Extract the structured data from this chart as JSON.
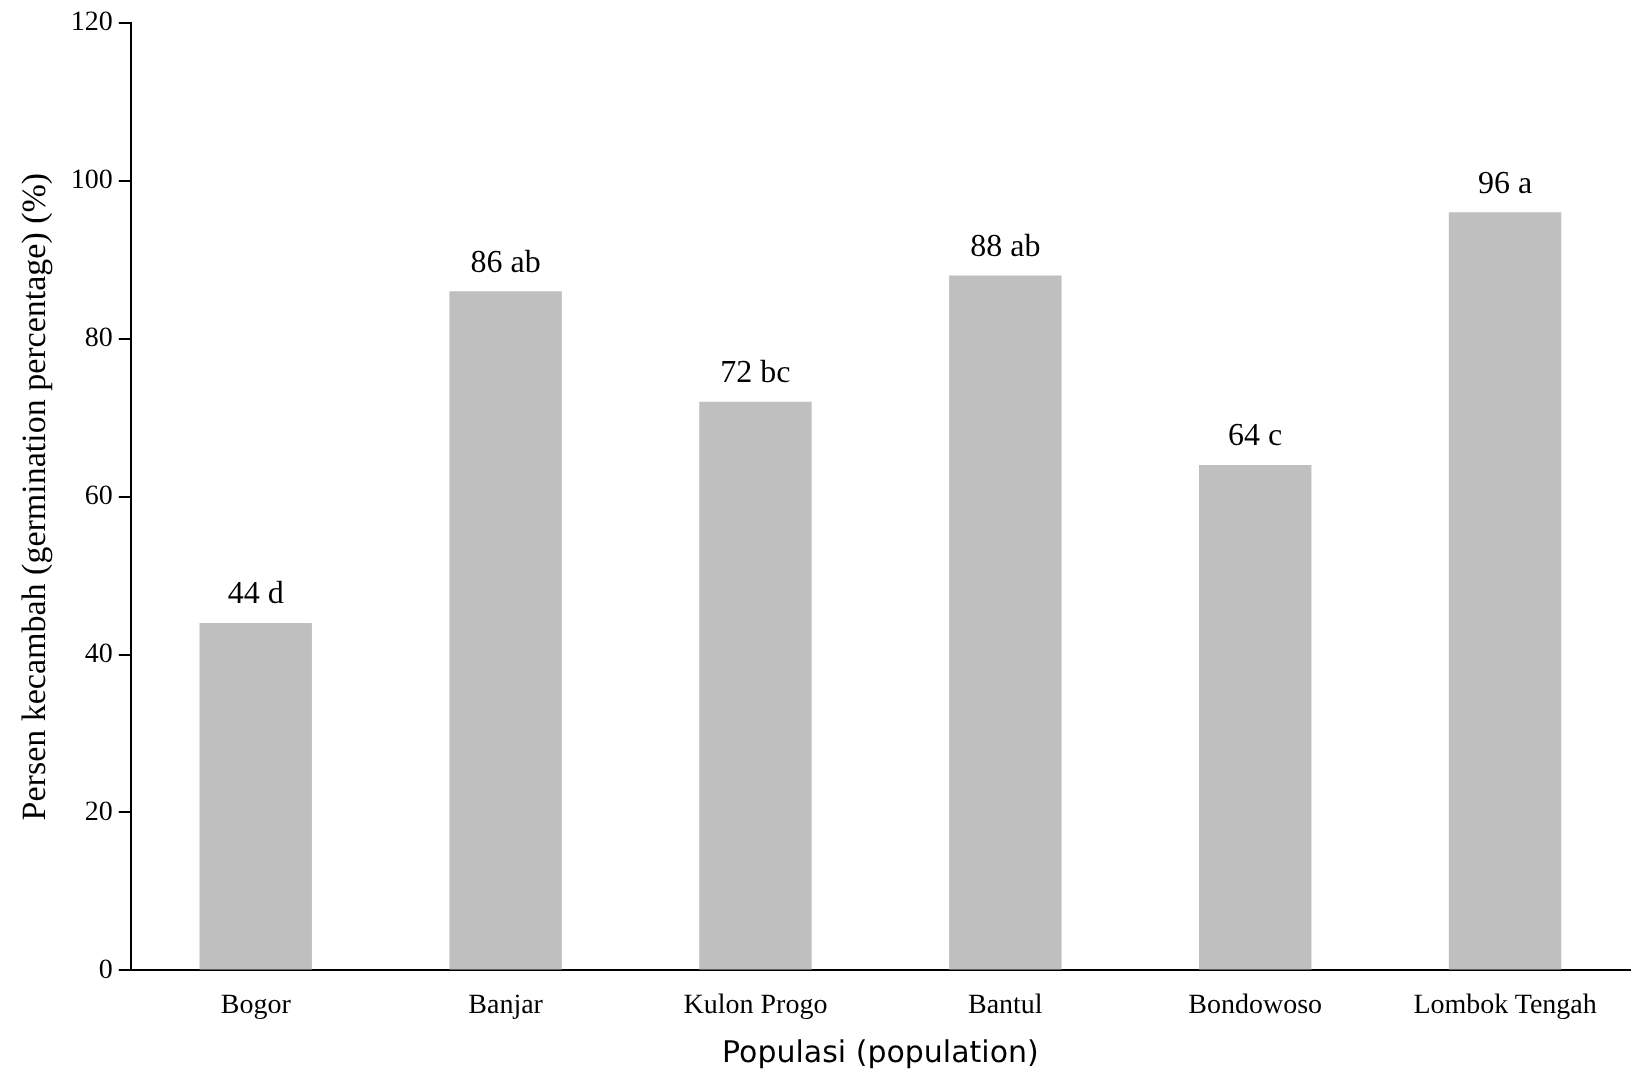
{
  "chart_data": {
    "type": "bar",
    "xlabel": "Populasi (population)",
    "ylabel": "Persen kecambah (germination percentage) (%)",
    "categories": [
      "Bogor",
      "Banjar",
      "Kulon Progo",
      "Bantul",
      "Bondowoso",
      "Lombok Tengah"
    ],
    "values": [
      44,
      86,
      72,
      88,
      64,
      96
    ],
    "value_labels": [
      "44 d",
      "86 ab",
      "72 bc",
      "88 ab",
      "64 c",
      "96 a"
    ],
    "color": "#bfbfbf",
    "ylim": [
      0,
      120
    ],
    "yticks": [
      0,
      20,
      40,
      60,
      80,
      100,
      120
    ],
    "grid": false,
    "legend": false
  }
}
